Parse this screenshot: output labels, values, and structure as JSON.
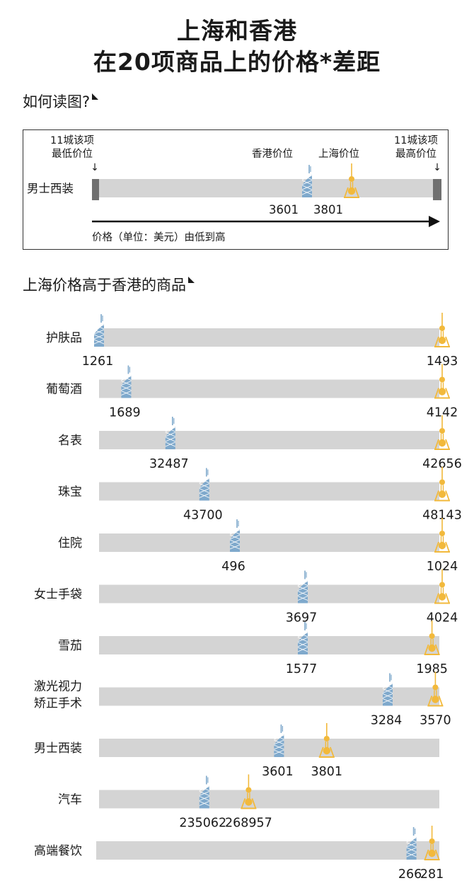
{
  "title_line1": "上海和香港",
  "title_line2": "在20项商品上的价格*差距",
  "how_to_read": "如何读图?",
  "legend": {
    "low_label_1": "11城该项",
    "low_label_2": "最低价位",
    "high_label_1": "11城该项",
    "high_label_2": "最高价位",
    "hk_label": "香港价位",
    "sh_label": "上海价位",
    "item": "男士西装",
    "hk_value": "3601",
    "sh_value": "3801",
    "arrow_caption": "价格（单位：美元）由低到高"
  },
  "section_title": "上海价格高于香港的商品",
  "colors": {
    "hk": "#7fa9cc",
    "sh": "#f2b93b",
    "bar": "#d4d4d4",
    "endcap": "#707070"
  },
  "icons": {
    "hk": "hk-tower-icon",
    "sh": "sh-pearl-tower-icon"
  },
  "chart_data": {
    "type": "range-dot",
    "title": "上海价格高于香港的商品",
    "scale": "relative position between 11-city lowest price (0) and highest price (1)",
    "series": [
      {
        "name": "香港价位"
      },
      {
        "name": "上海价位"
      }
    ],
    "items": [
      {
        "name": "护肤品",
        "hk": 1261,
        "sh": 1493,
        "hk_pos": 0.0,
        "sh_pos": 1.0
      },
      {
        "name": "葡萄酒",
        "hk": 1689,
        "sh": 4142,
        "hk_pos": 0.08,
        "sh_pos": 1.0
      },
      {
        "name": "名表",
        "hk": 32487,
        "sh": 42656,
        "hk_pos": 0.21,
        "sh_pos": 1.0
      },
      {
        "name": "珠宝",
        "hk": 43700,
        "sh": 48143,
        "hk_pos": 0.31,
        "sh_pos": 1.0
      },
      {
        "name": "住院",
        "hk": 496,
        "sh": 1024,
        "hk_pos": 0.4,
        "sh_pos": 1.0
      },
      {
        "name": "女士手袋",
        "hk": 3697,
        "sh": 4024,
        "hk_pos": 0.6,
        "sh_pos": 1.0
      },
      {
        "name": "雪茄",
        "hk": 1577,
        "sh": 1985,
        "hk_pos": 0.6,
        "sh_pos": 0.97
      },
      {
        "name": "激光视力\n矫正手术",
        "hk": 3284,
        "sh": 3570,
        "hk_pos": 0.85,
        "sh_pos": 0.98
      },
      {
        "name": "男士西装",
        "hk": 3601,
        "sh": 3801,
        "hk_pos": 0.53,
        "sh_pos": 0.66
      },
      {
        "name": "汽车",
        "hk": 235062,
        "sh": 268957,
        "hk_pos": 0.31,
        "sh_pos": 0.43
      },
      {
        "name": "高端餐饮",
        "hk": 266,
        "sh": 281,
        "hk_pos": 0.92,
        "sh_pos": 0.97
      }
    ]
  }
}
